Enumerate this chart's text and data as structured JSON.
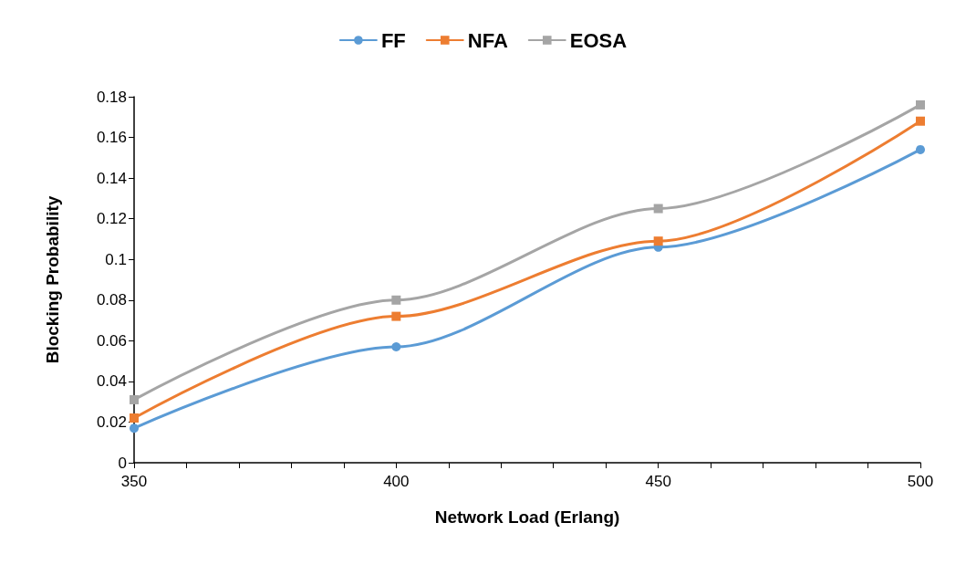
{
  "chart_data": {
    "type": "line",
    "xlabel": "Network Load (Erlang)",
    "ylabel": "Blocking Probability",
    "x": [
      350,
      400,
      450,
      500
    ],
    "series": [
      {
        "name": "FF",
        "color": "#5b9bd5",
        "marker": "circle",
        "values": [
          0.017,
          0.057,
          0.106,
          0.154
        ]
      },
      {
        "name": "NFA",
        "color": "#ed7d31",
        "marker": "square",
        "values": [
          0.022,
          0.072,
          0.109,
          0.168
        ]
      },
      {
        "name": "EOSA",
        "color": "#a5a5a5",
        "marker": "square",
        "values": [
          0.031,
          0.08,
          0.125,
          0.176
        ]
      }
    ],
    "xlim": [
      350,
      500
    ],
    "xticks": [
      350,
      {
        "value": 360,
        "label": null
      },
      {
        "value": 370,
        "label": null
      },
      {
        "value": 380,
        "label": null
      },
      {
        "value": 390,
        "label": null
      },
      400,
      {
        "value": 410,
        "label": null
      },
      {
        "value": 420,
        "label": null
      },
      {
        "value": 430,
        "label": null
      },
      {
        "value": 440,
        "label": null
      },
      450,
      {
        "value": 460,
        "label": null
      },
      {
        "value": 470,
        "label": null
      },
      {
        "value": 480,
        "label": null
      },
      {
        "value": 490,
        "label": null
      },
      500
    ],
    "ylim": [
      0,
      0.18
    ],
    "yticks": [
      0,
      0.02,
      0.04,
      0.06,
      0.08,
      0.1,
      0.12,
      0.14,
      0.16,
      0.18
    ],
    "grid": false,
    "legend": "top",
    "line_style": "solid"
  }
}
